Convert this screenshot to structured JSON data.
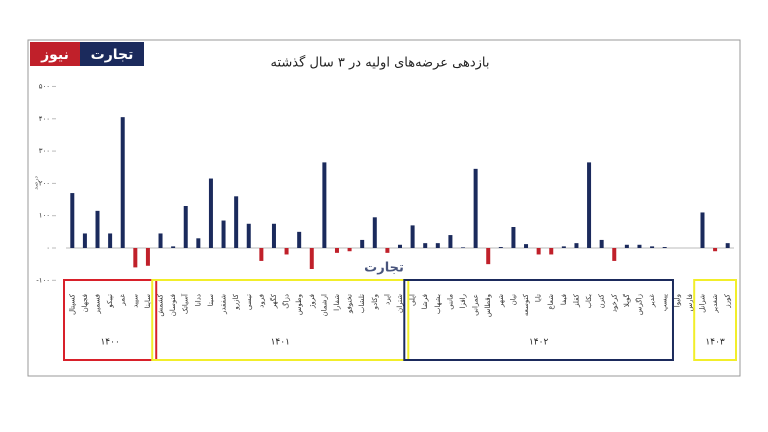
{
  "brand": {
    "name": "تجارت",
    "accent": "نیوز"
  },
  "chart_data": {
    "type": "bar",
    "title": "بازدهی عرضه‌های اولیه در ۳ سال گذشته",
    "y_label": "درصد",
    "bar_color": "#1b2a5c",
    "negative_color": "#c0202a",
    "categories": [
      "کسپتال",
      "فجهان",
      "فسمیر",
      "تپیکو",
      "غمر",
      "سپید",
      "ساینا",
      "کشمش",
      "فنوسان",
      "آسیاتک",
      "ددانا",
      "سیتا",
      "شفقدر",
      "کازرو",
      "تیسی",
      "فرود",
      "کگهر",
      "دزاگ",
      "وطوس",
      "فروژ",
      "ارشمان",
      "شفارا",
      "تخنوفو",
      "تلشاب",
      "وکادو",
      "اپرد",
      "شتران",
      "آپلی",
      "فرشا",
      "بشهاب",
      "ماننی",
      "رافزا",
      "عمرانی",
      "وقطاس",
      "شهر",
      "نیان",
      "کتوسعه",
      "تابا",
      "شعاع",
      "فیفا",
      "کقلز",
      "بکاب",
      "کترن",
      "کرخود",
      "گوپلا",
      "زاگرس",
      "غدیر",
      "پیسپ",
      "ولیوا",
      "فارس",
      "شرانل",
      "شغدیر",
      "کورز"
    ],
    "series": [
      {
        "name": "۱۴۰۰",
        "color": "#d8202a",
        "values": [
          170,
          45,
          115,
          45,
          405,
          -60,
          -55,
          null,
          null,
          null,
          null,
          null,
          null,
          null,
          null,
          null,
          null,
          null,
          null,
          null,
          null,
          null,
          null,
          null,
          null,
          null,
          null,
          null,
          null,
          null,
          null,
          null,
          null,
          null,
          null,
          null,
          null,
          null,
          null,
          null,
          null,
          null,
          null,
          null,
          null,
          null,
          null,
          null,
          null,
          null,
          null,
          null,
          null
        ]
      },
      {
        "name": "۱۴۰۱",
        "color": "#f2ee2a",
        "values": [
          null,
          null,
          null,
          null,
          null,
          null,
          null,
          45,
          5,
          130,
          30,
          215,
          85,
          160,
          75,
          -40,
          75,
          -20,
          50,
          -65,
          265,
          -15,
          -10,
          25,
          95,
          -15,
          10,
          null,
          null,
          null,
          null,
          null,
          null,
          null,
          null,
          null,
          null,
          null,
          null,
          null,
          null,
          null,
          null,
          null,
          null,
          null,
          null,
          null,
          null,
          null,
          null,
          null,
          null
        ]
      },
      {
        "name": "۱۴۰۲",
        "color": "#1b2a5c",
        "values": [
          null,
          null,
          null,
          null,
          null,
          null,
          null,
          null,
          null,
          null,
          null,
          null,
          null,
          null,
          null,
          null,
          null,
          null,
          null,
          null,
          null,
          null,
          null,
          null,
          null,
          null,
          null,
          70,
          15,
          15,
          40,
          2,
          245,
          -50,
          3,
          65,
          12,
          -20,
          -20,
          5,
          15,
          265,
          25,
          -40,
          10,
          10,
          5,
          3,
          null,
          null,
          null,
          null,
          null
        ]
      },
      {
        "name": "۱۴۰۳",
        "color": "#f2ee2a",
        "values": [
          null,
          null,
          null,
          null,
          null,
          null,
          null,
          null,
          null,
          null,
          null,
          null,
          null,
          null,
          null,
          null,
          null,
          null,
          null,
          null,
          null,
          null,
          null,
          null,
          null,
          null,
          null,
          null,
          null,
          null,
          null,
          null,
          null,
          null,
          null,
          null,
          null,
          null,
          null,
          null,
          null,
          null,
          null,
          null,
          null,
          null,
          null,
          null,
          null,
          null,
          110,
          -10,
          15
        ]
      }
    ],
    "ylim": [
      -130,
      520
    ],
    "yticks": [
      {
        "value": 500,
        "label": "۵۰۰"
      },
      {
        "value": 400,
        "label": "۴۰۰"
      },
      {
        "value": 300,
        "label": "۳۰۰"
      },
      {
        "value": 200,
        "label": "۲۰۰"
      },
      {
        "value": 100,
        "label": "۱۰۰"
      },
      {
        "value": 0,
        "label": "۰"
      },
      {
        "value": -100,
        "label": "-۱۰۰"
      }
    ]
  }
}
